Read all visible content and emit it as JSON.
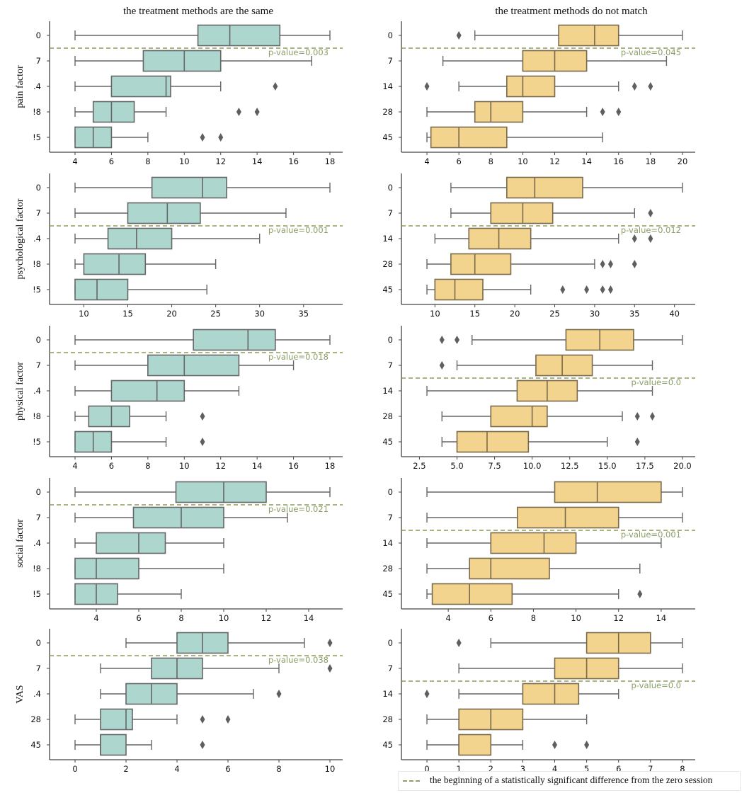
{
  "titles": {
    "left": "the treatment methods are the same",
    "right": "the treatment methods do not match"
  },
  "legend": {
    "label": "the beginning of a statistically significant difference from the zero session"
  },
  "colors": {
    "same_fill": "#add6cf",
    "mismatch_fill": "#f2d48f",
    "box_edge": "#676767",
    "threshold_line": "#8e9c55",
    "pvalue_text": "#8a9e66"
  },
  "chart_data": [
    {
      "type": "boxplot",
      "orientation": "horizontal",
      "panel": "pain factor / same",
      "ylabel": "pain factor",
      "categories": [
        "0",
        "7",
        "14",
        "28",
        "45"
      ],
      "tick_labels": [
        "0",
        "7",
        ".4",
        "!8",
        "!5"
      ],
      "xlim": [
        3.3,
        18.7
      ],
      "xticks": [
        4,
        6,
        8,
        10,
        12,
        14,
        16,
        18
      ],
      "threshold_after_index": 0,
      "pvalue_label": "p-value=0.003",
      "boxes": [
        {
          "whislo": 4,
          "q1": 10.75,
          "med": 12.5,
          "q3": 15.25,
          "whishi": 18,
          "fliers": []
        },
        {
          "whislo": 4,
          "q1": 7.75,
          "med": 10,
          "q3": 12,
          "whishi": 17,
          "fliers": []
        },
        {
          "whislo": 4,
          "q1": 6,
          "med": 9,
          "q3": 9.25,
          "whishi": 12,
          "fliers": [
            15
          ]
        },
        {
          "whislo": 4,
          "q1": 5,
          "med": 6,
          "q3": 7.25,
          "whishi": 9,
          "fliers": [
            13,
            14
          ]
        },
        {
          "whislo": 4,
          "q1": 4,
          "med": 5,
          "q3": 6,
          "whishi": 8,
          "fliers": [
            11,
            12
          ]
        }
      ]
    },
    {
      "type": "boxplot",
      "orientation": "horizontal",
      "panel": "pain factor / mismatch",
      "ylabel": "",
      "categories": [
        "0",
        "7",
        "14",
        "28",
        "45"
      ],
      "tick_labels": [
        "0",
        "7",
        "14",
        "28",
        "45"
      ],
      "xlim": [
        3.2,
        20.8
      ],
      "xticks": [
        4,
        6,
        8,
        10,
        12,
        14,
        16,
        18,
        20
      ],
      "threshold_after_index": 0,
      "pvalue_label": "p-value=0.045",
      "boxes": [
        {
          "whislo": 7,
          "q1": 12.25,
          "med": 14.5,
          "q3": 16,
          "whishi": 20,
          "fliers": [
            6
          ]
        },
        {
          "whislo": 5,
          "q1": 10,
          "med": 12,
          "q3": 14,
          "whishi": 19,
          "fliers": []
        },
        {
          "whislo": 6,
          "q1": 9,
          "med": 10,
          "q3": 12,
          "whishi": 16,
          "fliers": [
            4,
            17,
            18
          ]
        },
        {
          "whislo": 4,
          "q1": 7,
          "med": 8,
          "q3": 10,
          "whishi": 14,
          "fliers": [
            15,
            16
          ]
        },
        {
          "whislo": 4,
          "q1": 4.25,
          "med": 6,
          "q3": 9,
          "whishi": 15,
          "fliers": []
        }
      ]
    },
    {
      "type": "boxplot",
      "orientation": "horizontal",
      "panel": "psychological factor / same",
      "ylabel": "psychological factor",
      "categories": [
        "0",
        "7",
        "14",
        "28",
        "45"
      ],
      "tick_labels": [
        "0",
        "7",
        ".4",
        "!8",
        "!5"
      ],
      "xlim": [
        7.55,
        39.45
      ],
      "xticks": [
        10,
        15,
        20,
        25,
        30,
        35
      ],
      "threshold_after_index": 1,
      "pvalue_label": "p-value=0.001",
      "boxes": [
        {
          "whislo": 9,
          "q1": 17.75,
          "med": 23.5,
          "q3": 26.25,
          "whishi": 38,
          "fliers": []
        },
        {
          "whislo": 9,
          "q1": 15,
          "med": 19.5,
          "q3": 23.25,
          "whishi": 33,
          "fliers": []
        },
        {
          "whislo": 9,
          "q1": 12.75,
          "med": 16,
          "q3": 20,
          "whishi": 30,
          "fliers": []
        },
        {
          "whislo": 9,
          "q1": 10,
          "med": 14,
          "q3": 17,
          "whishi": 25,
          "fliers": []
        },
        {
          "whislo": 9,
          "q1": 9,
          "med": 11.5,
          "q3": 15,
          "whishi": 24,
          "fliers": []
        }
      ]
    },
    {
      "type": "boxplot",
      "orientation": "horizontal",
      "panel": "psychological factor / mismatch",
      "ylabel": "",
      "categories": [
        "0",
        "7",
        "14",
        "28",
        "45"
      ],
      "tick_labels": [
        "0",
        "7",
        "14",
        "28",
        "45"
      ],
      "xlim": [
        7.4,
        42.6
      ],
      "xticks": [
        10,
        15,
        20,
        25,
        30,
        35,
        40
      ],
      "threshold_after_index": 1,
      "pvalue_label": "p-value=0.012",
      "boxes": [
        {
          "whislo": 12,
          "q1": 19,
          "med": 22.5,
          "q3": 28.5,
          "whishi": 41,
          "fliers": []
        },
        {
          "whislo": 12,
          "q1": 17,
          "med": 21,
          "q3": 24.75,
          "whishi": 35,
          "fliers": [
            37
          ]
        },
        {
          "whislo": 10,
          "q1": 14.25,
          "med": 18,
          "q3": 22,
          "whishi": 33,
          "fliers": [
            35,
            37
          ]
        },
        {
          "whislo": 9,
          "q1": 12,
          "med": 15,
          "q3": 19.5,
          "whishi": 30,
          "fliers": [
            31,
            32,
            35
          ]
        },
        {
          "whislo": 9,
          "q1": 10,
          "med": 12.5,
          "q3": 16,
          "whishi": 22,
          "fliers": [
            26,
            29,
            31,
            32
          ]
        }
      ]
    },
    {
      "type": "boxplot",
      "orientation": "horizontal",
      "panel": "physical factor / same",
      "ylabel": "physical factor",
      "categories": [
        "0",
        "7",
        "14",
        "28",
        "45"
      ],
      "tick_labels": [
        "0",
        "7",
        ".4",
        "!8",
        "!5"
      ],
      "xlim": [
        3.3,
        18.7
      ],
      "xticks": [
        4,
        6,
        8,
        10,
        12,
        14,
        16,
        18
      ],
      "threshold_after_index": 0,
      "pvalue_label": "p-value=0.018",
      "boxes": [
        {
          "whislo": 4,
          "q1": 10.5,
          "med": 13.5,
          "q3": 15,
          "whishi": 18,
          "fliers": []
        },
        {
          "whislo": 4,
          "q1": 8,
          "med": 10,
          "q3": 13,
          "whishi": 16,
          "fliers": []
        },
        {
          "whislo": 4,
          "q1": 6,
          "med": 8.5,
          "q3": 10,
          "whishi": 13,
          "fliers": []
        },
        {
          "whislo": 4,
          "q1": 4.75,
          "med": 6,
          "q3": 7,
          "whishi": 9,
          "fliers": [
            11
          ]
        },
        {
          "whislo": 4,
          "q1": 4,
          "med": 5,
          "q3": 6,
          "whishi": 9,
          "fliers": [
            11
          ]
        }
      ]
    },
    {
      "type": "boxplot",
      "orientation": "horizontal",
      "panel": "physical factor / mismatch",
      "ylabel": "",
      "categories": [
        "0",
        "7",
        "14",
        "28",
        "45"
      ],
      "tick_labels": [
        "0",
        "7",
        "14",
        "28",
        "45"
      ],
      "xlim": [
        2.15,
        20.85
      ],
      "xticks": [
        2.5,
        5,
        7.5,
        10,
        12.5,
        15,
        17.5,
        20
      ],
      "xtick_labels": [
        "2.5",
        "5.0",
        "7.5",
        "10.0",
        "12.5",
        "15.0",
        "17.5",
        "20.0"
      ],
      "threshold_after_index": 1,
      "pvalue_label": "p-value=0.0",
      "boxes": [
        {
          "whislo": 6,
          "q1": 12.25,
          "med": 14.5,
          "q3": 16.75,
          "whishi": 20,
          "fliers": [
            4,
            5
          ]
        },
        {
          "whislo": 5,
          "q1": 10.25,
          "med": 12,
          "q3": 14,
          "whishi": 18,
          "fliers": [
            4
          ]
        },
        {
          "whislo": 3,
          "q1": 9,
          "med": 11,
          "q3": 13,
          "whishi": 18,
          "fliers": []
        },
        {
          "whislo": 4,
          "q1": 7.25,
          "med": 10,
          "q3": 11,
          "whishi": 16,
          "fliers": [
            17,
            18
          ]
        },
        {
          "whislo": 4,
          "q1": 5,
          "med": 7,
          "q3": 9.75,
          "whishi": 15,
          "fliers": [
            17
          ]
        }
      ]
    },
    {
      "type": "boxplot",
      "orientation": "horizontal",
      "panel": "social factor / same",
      "ylabel": "social factor",
      "categories": [
        "0",
        "7",
        "14",
        "28",
        "45"
      ],
      "tick_labels": [
        "0",
        "7",
        ".4",
        "!8",
        "!5"
      ],
      "xlim": [
        2.4,
        15.6
      ],
      "xticks": [
        4,
        6,
        8,
        10,
        12,
        14
      ],
      "threshold_after_index": 0,
      "pvalue_label": "p-value=0.021",
      "boxes": [
        {
          "whislo": 3,
          "q1": 7.75,
          "med": 10,
          "q3": 12,
          "whishi": 15,
          "fliers": []
        },
        {
          "whislo": 3,
          "q1": 5.75,
          "med": 8,
          "q3": 10,
          "whishi": 13,
          "fliers": []
        },
        {
          "whislo": 3,
          "q1": 4,
          "med": 6,
          "q3": 7.25,
          "whishi": 10,
          "fliers": []
        },
        {
          "whislo": 3,
          "q1": 3,
          "med": 4,
          "q3": 6,
          "whishi": 10,
          "fliers": []
        },
        {
          "whislo": 3,
          "q1": 3,
          "med": 4,
          "q3": 5,
          "whishi": 8,
          "fliers": []
        }
      ]
    },
    {
      "type": "boxplot",
      "orientation": "horizontal",
      "panel": "social factor / mismatch",
      "ylabel": "",
      "categories": [
        "0",
        "7",
        "14",
        "28",
        "45"
      ],
      "tick_labels": [
        "0",
        "7",
        "14",
        "28",
        "45"
      ],
      "xlim": [
        2.4,
        15.6
      ],
      "xticks": [
        4,
        6,
        8,
        10,
        12,
        14
      ],
      "threshold_after_index": 1,
      "pvalue_label": "p-value=0.001",
      "boxes": [
        {
          "whislo": 3,
          "q1": 9,
          "med": 11,
          "q3": 14,
          "whishi": 15,
          "fliers": []
        },
        {
          "whislo": 3,
          "q1": 7.25,
          "med": 9.5,
          "q3": 12,
          "whishi": 15,
          "fliers": []
        },
        {
          "whislo": 3,
          "q1": 6,
          "med": 8.5,
          "q3": 10,
          "whishi": 14,
          "fliers": []
        },
        {
          "whislo": 3,
          "q1": 5,
          "med": 6,
          "q3": 8.75,
          "whishi": 13,
          "fliers": []
        },
        {
          "whislo": 3,
          "q1": 3.25,
          "med": 5,
          "q3": 7,
          "whishi": 12,
          "fliers": [
            13
          ]
        }
      ]
    },
    {
      "type": "boxplot",
      "orientation": "horizontal",
      "panel": "VAS / same",
      "ylabel": "VAS",
      "categories": [
        "0",
        "7",
        "14",
        "28",
        "45"
      ],
      "tick_labels": [
        "0",
        "7",
        ".4",
        "28",
        "45"
      ],
      "xlim": [
        -0.5,
        10.5
      ],
      "xticks": [
        0,
        2,
        4,
        6,
        8,
        10
      ],
      "threshold_after_index": 0,
      "pvalue_label": "p-value=0.038",
      "boxes": [
        {
          "whislo": 2,
          "q1": 4,
          "med": 5,
          "q3": 6,
          "whishi": 9,
          "fliers": [
            10
          ]
        },
        {
          "whislo": 1,
          "q1": 3,
          "med": 4,
          "q3": 5,
          "whishi": 8,
          "fliers": [
            10
          ]
        },
        {
          "whislo": 1,
          "q1": 2,
          "med": 3,
          "q3": 4,
          "whishi": 7,
          "fliers": [
            8
          ]
        },
        {
          "whislo": 0,
          "q1": 1,
          "med": 2,
          "q3": 2.25,
          "whishi": 4,
          "fliers": [
            5,
            6
          ]
        },
        {
          "whislo": 0,
          "q1": 1,
          "med": 1,
          "q3": 2,
          "whishi": 3,
          "fliers": [
            5
          ]
        }
      ]
    },
    {
      "type": "boxplot",
      "orientation": "horizontal",
      "panel": "VAS / mismatch",
      "ylabel": "",
      "categories": [
        "0",
        "7",
        "14",
        "28",
        "45"
      ],
      "tick_labels": [
        "0",
        "7",
        "14",
        "28",
        "45"
      ],
      "xlim": [
        -0.4,
        8.4
      ],
      "xticks": [
        0,
        1,
        2,
        3,
        4,
        5,
        6,
        7,
        8
      ],
      "threshold_after_index": 1,
      "pvalue_label": "p-value=0.0",
      "boxes": [
        {
          "whislo": 2,
          "q1": 5,
          "med": 6,
          "q3": 7,
          "whishi": 8,
          "fliers": [
            1
          ]
        },
        {
          "whislo": 1,
          "q1": 4,
          "med": 5,
          "q3": 6,
          "whishi": 8,
          "fliers": []
        },
        {
          "whislo": 1,
          "q1": 3,
          "med": 4,
          "q3": 4.75,
          "whishi": 6,
          "fliers": [
            0
          ]
        },
        {
          "whislo": 0,
          "q1": 1,
          "med": 2,
          "q3": 3,
          "whishi": 5,
          "fliers": []
        },
        {
          "whislo": 0,
          "q1": 1,
          "med": 1,
          "q3": 2,
          "whishi": 3,
          "fliers": [
            4,
            5
          ]
        }
      ]
    }
  ]
}
